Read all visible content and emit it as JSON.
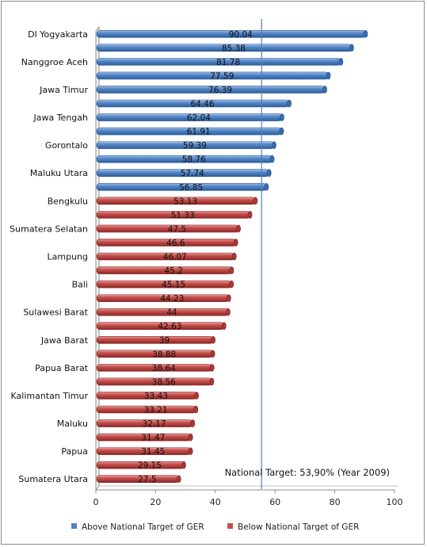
{
  "chart_data": {
    "type": "bar",
    "orientation": "horizontal",
    "categories": [
      "DI Yogyakarta",
      "",
      "Nanggroe Aceh",
      "",
      "Jawa Timur",
      "",
      "Jawa Tengah",
      "",
      "Gorontalo",
      "",
      "Maluku Utara",
      "",
      "Bengkulu",
      "",
      "Sumatera Selatan",
      "",
      "Lampung",
      "",
      "Bali",
      "",
      "Sulawesi Barat",
      "",
      "Jawa Barat",
      "",
      "Papua Barat",
      "",
      "Kalimantan Timur",
      "",
      "Maluku",
      "",
      "Papua",
      "",
      "Sumatera Utara"
    ],
    "values": [
      90.04,
      85.38,
      81.78,
      77.59,
      76.39,
      64.46,
      62.04,
      61.91,
      59.39,
      58.76,
      57.74,
      56.85,
      53.13,
      51.33,
      47.5,
      46.6,
      46.07,
      45.2,
      45.15,
      44.23,
      44,
      42.63,
      39,
      38.88,
      38.64,
      38.56,
      33.43,
      33.21,
      32.17,
      31.47,
      31.45,
      29.15,
      27.5
    ],
    "value_labels": [
      "90.04",
      "85.38",
      "81.78",
      "77.59",
      "76.39",
      "64.46",
      "62.04",
      "61.91",
      "59.39",
      "58.76",
      "57.74",
      "56.85",
      "53.13",
      "51.33",
      "47.5",
      "46.6",
      "46.07",
      "45.2",
      "45.15",
      "44.23",
      "44",
      "42.63",
      "39",
      "38.88",
      "38.64",
      "38.56",
      "33.43",
      "33.21",
      "32.17",
      "31.47",
      "31.45",
      "29.15",
      "27.5"
    ],
    "series": [
      {
        "name": "Above National Target of GER",
        "color": "#4f81bd"
      },
      {
        "name": "Below National Target of GER",
        "color": "#c0504d"
      }
    ],
    "above_count": 12,
    "target_value": 53.9,
    "annotation": "National Target: 53,90% (Year 2009)",
    "xlim": [
      0,
      100
    ],
    "x_ticks": [
      "0",
      "20",
      "40",
      "60",
      "80",
      "100"
    ],
    "grid": false,
    "legend_position": "bottom"
  }
}
